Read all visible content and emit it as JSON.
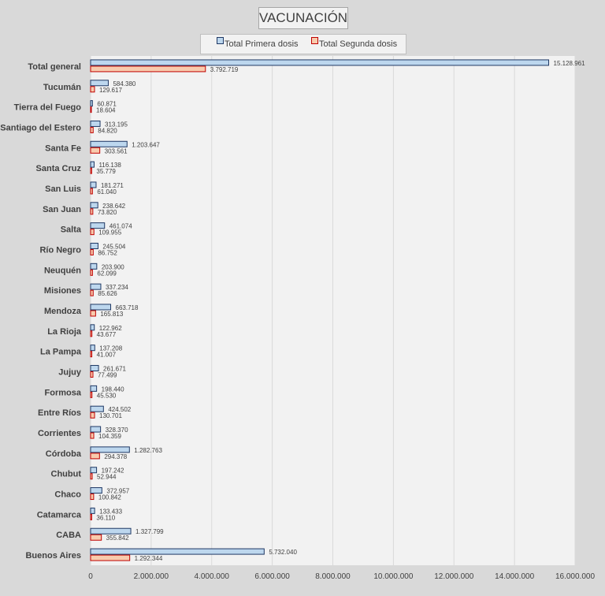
{
  "chart_data": {
    "type": "bar",
    "orientation": "horizontal",
    "title": "VACUNACIÓN",
    "xlabel": "",
    "ylabel": "",
    "xlim": [
      0,
      16000000
    ],
    "xticks": [
      0,
      2000000,
      4000000,
      6000000,
      8000000,
      10000000,
      12000000,
      14000000,
      16000000
    ],
    "xtick_labels": [
      "0",
      "2.000.000",
      "4.000.000",
      "6.000.000",
      "8.000.000",
      "10.000.000",
      "12.000.000",
      "14.000.000",
      "16.000.000"
    ],
    "grid": true,
    "legend_position": "top",
    "categories": [
      "Total general",
      "Tucumán",
      "Tierra del Fuego",
      "Santiago del Estero",
      "Santa Fe",
      "Santa Cruz",
      "San Luis",
      "San Juan",
      "Salta",
      "Río Negro",
      "Neuquén",
      "Misiones",
      "Mendoza",
      "La Rioja",
      "La Pampa",
      "Jujuy",
      "Formosa",
      "Entre Ríos",
      "Corrientes",
      "Córdoba",
      "Chubut",
      "Chaco",
      "Catamarca",
      "CABA",
      "Buenos Aires"
    ],
    "series": [
      {
        "name": "Total Primera dosis",
        "color": "#bdd7ee",
        "stroke": "#1f3864",
        "values": [
          15128961,
          584380,
          60871,
          313195,
          1203647,
          116138,
          181271,
          238642,
          461074,
          245504,
          203900,
          337234,
          663718,
          122962,
          137208,
          261671,
          198440,
          424502,
          328370,
          1282763,
          197242,
          372957,
          133433,
          1327799,
          5732040
        ],
        "labels": [
          "15.128.961",
          "584.380",
          "60.871",
          "313.195",
          "1.203.647",
          "116.138",
          "181.271",
          "238.642",
          "461.074",
          "245.504",
          "203.900",
          "337.234",
          "663.718",
          "122.962",
          "137.208",
          "261.671",
          "198.440",
          "424.502",
          "328.370",
          "1.282.763",
          "197.242",
          "372.957",
          "133.433",
          "1.327.799",
          "5.732.040"
        ]
      },
      {
        "name": "Total Segunda dosis",
        "color": "#f8cbad",
        "stroke": "#c00000",
        "values": [
          3792719,
          129617,
          18604,
          84820,
          303561,
          35779,
          61040,
          73820,
          109955,
          86752,
          62099,
          85626,
          165813,
          43677,
          41007,
          77499,
          45530,
          130701,
          104359,
          294378,
          52944,
          100842,
          36110,
          355842,
          1292344
        ],
        "labels": [
          "3.792.719",
          "129.617",
          "18.604",
          "84.820",
          "303.561",
          "35.779",
          "61.040",
          "73.820",
          "109.955",
          "86.752",
          "62.099",
          "85.626",
          "165.813",
          "43.677",
          "41.007",
          "77.499",
          "45.530",
          "130.701",
          "104.359",
          "294.378",
          "52.944",
          "100.842",
          "36.110",
          "355.842",
          "1.292.344"
        ]
      }
    ]
  }
}
